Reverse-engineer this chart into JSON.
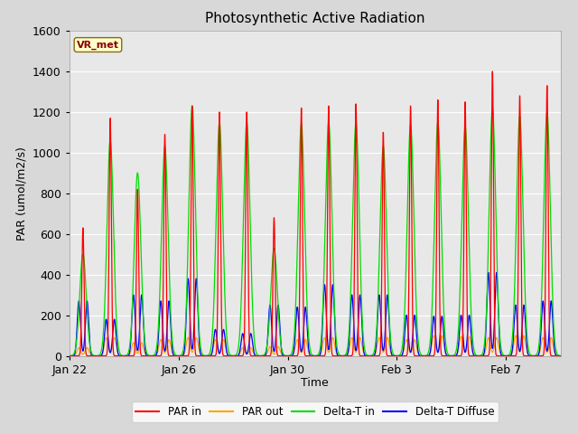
{
  "title": "Photosynthetic Active Radiation",
  "ylabel": "PAR (umol/m2/s)",
  "xlabel": "Time",
  "label_text": "VR_met",
  "bg_color": "#d8d8d8",
  "plot_bg_color": "#e8e8e8",
  "ylim": [
    0,
    1600
  ],
  "yticks": [
    0,
    200,
    400,
    600,
    800,
    1000,
    1200,
    1400,
    1600
  ],
  "colors": {
    "PAR in": "#ff0000",
    "PAR out": "#ffa500",
    "Delta-T in": "#00dd00",
    "Delta-T Diffuse": "#0000ff"
  },
  "n_days": 18,
  "x_tick_labels": [
    "Jan 22",
    "Jan 26",
    "Jan 30",
    "Feb 3",
    "Feb 7"
  ],
  "x_tick_day_offsets": [
    0,
    4,
    8,
    12,
    16
  ],
  "par_in_pk": [
    630,
    1170,
    820,
    1090,
    1230,
    1200,
    1200,
    680,
    1220,
    1230,
    1240,
    1100,
    1230,
    1260,
    1250,
    1400,
    1280,
    1330
  ],
  "par_out_pk": [
    40,
    90,
    65,
    80,
    90,
    80,
    40,
    45,
    80,
    90,
    90,
    90,
    80,
    100,
    95,
    90,
    100,
    90
  ],
  "dtin_pk": [
    500,
    1060,
    900,
    1030,
    1230,
    1150,
    1150,
    530,
    1140,
    1150,
    1150,
    1030,
    1140,
    1150,
    1130,
    1220,
    1180,
    1200
  ],
  "dtdiff_pk": [
    270,
    180,
    300,
    270,
    380,
    130,
    110,
    250,
    240,
    350,
    300,
    300,
    200,
    195,
    200,
    410,
    250,
    270
  ]
}
